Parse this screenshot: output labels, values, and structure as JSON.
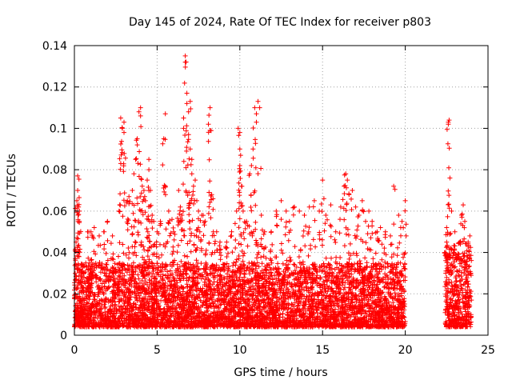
{
  "chart_data": {
    "type": "scatter",
    "title": "Day 145 of 2024, Rate Of TEC Index for receiver p803",
    "xlabel": "GPS time / hours",
    "ylabel": "ROTI / TECUs",
    "xlim": [
      0,
      25
    ],
    "ylim": [
      0,
      0.14
    ],
    "xticks": [
      0,
      5,
      10,
      15,
      20,
      25
    ],
    "yticks": [
      0,
      0.02,
      0.04,
      0.06,
      0.08,
      0.1,
      0.12,
      0.14
    ],
    "xtick_labels": [
      "0",
      "5",
      "10",
      "15",
      "20",
      "25"
    ],
    "ytick_labels": [
      "0",
      "0.02",
      "0.04",
      "0.06",
      "0.08",
      "0.1",
      "0.12",
      "0.14"
    ],
    "grid": true,
    "marker": "+",
    "color": "#ff0000",
    "data_gap_hours": [
      20.0,
      22.4
    ],
    "series": [
      {
        "name": "ROTI",
        "points": [
          [
            0.1,
            0.045
          ],
          [
            0.15,
            0.065
          ],
          [
            0.2,
            0.07
          ],
          [
            0.2,
            0.077
          ],
          [
            0.25,
            0.062
          ],
          [
            0.3,
            0.055
          ],
          [
            0.3,
            0.06
          ],
          [
            0.8,
            0.05
          ],
          [
            1.0,
            0.05
          ],
          [
            1.2,
            0.052
          ],
          [
            1.5,
            0.048
          ],
          [
            1.8,
            0.05
          ],
          [
            2.0,
            0.055
          ],
          [
            2.3,
            0.048
          ],
          [
            2.7,
            0.06
          ],
          [
            2.8,
            0.083
          ],
          [
            2.8,
            0.105
          ],
          [
            2.9,
            0.1
          ],
          [
            3.0,
            0.103
          ],
          [
            3.0,
            0.098
          ],
          [
            3.2,
            0.065
          ],
          [
            3.3,
            0.067
          ],
          [
            3.5,
            0.07
          ],
          [
            3.6,
            0.078
          ],
          [
            3.7,
            0.085
          ],
          [
            3.8,
            0.095
          ],
          [
            3.8,
            0.092
          ],
          [
            3.9,
            0.108
          ],
          [
            4.0,
            0.11
          ],
          [
            4.0,
            0.106
          ],
          [
            4.1,
            0.072
          ],
          [
            4.2,
            0.07
          ],
          [
            4.3,
            0.065
          ],
          [
            4.4,
            0.075
          ],
          [
            4.5,
            0.085
          ],
          [
            4.5,
            0.08
          ],
          [
            4.6,
            0.07
          ],
          [
            4.7,
            0.058
          ],
          [
            4.8,
            0.055
          ],
          [
            5.0,
            0.05
          ],
          [
            5.2,
            0.055
          ],
          [
            5.4,
            0.095
          ],
          [
            5.5,
            0.107
          ],
          [
            5.5,
            0.072
          ],
          [
            5.7,
            0.06
          ],
          [
            5.9,
            0.056
          ],
          [
            6.0,
            0.05
          ],
          [
            6.3,
            0.07
          ],
          [
            6.4,
            0.062
          ],
          [
            6.5,
            0.058
          ],
          [
            6.6,
            0.1
          ],
          [
            6.6,
            0.105
          ],
          [
            6.7,
            0.135
          ],
          [
            6.7,
            0.132
          ],
          [
            6.8,
            0.117
          ],
          [
            6.8,
            0.112
          ],
          [
            6.9,
            0.097
          ],
          [
            6.9,
            0.108
          ],
          [
            7.0,
            0.113
          ],
          [
            7.0,
            0.09
          ],
          [
            7.1,
            0.085
          ],
          [
            7.1,
            0.078
          ],
          [
            7.2,
            0.072
          ],
          [
            7.3,
            0.075
          ],
          [
            7.4,
            0.065
          ],
          [
            7.5,
            0.06
          ],
          [
            7.7,
            0.058
          ],
          [
            7.9,
            0.055
          ],
          [
            8.1,
            0.102
          ],
          [
            8.2,
            0.11
          ],
          [
            8.2,
            0.099
          ],
          [
            8.3,
            0.068
          ],
          [
            8.4,
            0.05
          ],
          [
            8.6,
            0.05
          ],
          [
            8.8,
            0.045
          ],
          [
            9.2,
            0.045
          ],
          [
            9.5,
            0.05
          ],
          [
            9.8,
            0.06
          ],
          [
            9.9,
            0.1
          ],
          [
            10.0,
            0.098
          ],
          [
            10.0,
            0.09
          ],
          [
            10.0,
            0.082
          ],
          [
            10.1,
            0.072
          ],
          [
            10.2,
            0.06
          ],
          [
            10.4,
            0.055
          ],
          [
            10.6,
            0.078
          ],
          [
            10.7,
            0.082
          ],
          [
            10.8,
            0.09
          ],
          [
            10.9,
            0.11
          ],
          [
            11.0,
            0.107
          ],
          [
            11.0,
            0.103
          ],
          [
            11.1,
            0.113
          ],
          [
            11.2,
            0.11
          ],
          [
            11.3,
            0.058
          ],
          [
            11.5,
            0.05
          ],
          [
            11.9,
            0.05
          ],
          [
            12.2,
            0.06
          ],
          [
            12.5,
            0.065
          ],
          [
            12.8,
            0.06
          ],
          [
            13.0,
            0.055
          ],
          [
            13.3,
            0.062
          ],
          [
            13.6,
            0.06
          ],
          [
            13.9,
            0.058
          ],
          [
            14.2,
            0.062
          ],
          [
            14.5,
            0.065
          ],
          [
            14.8,
            0.06
          ],
          [
            15.0,
            0.075
          ],
          [
            15.2,
            0.058
          ],
          [
            15.5,
            0.063
          ],
          [
            15.8,
            0.05
          ],
          [
            16.1,
            0.062
          ],
          [
            16.3,
            0.072
          ],
          [
            16.4,
            0.078
          ],
          [
            16.5,
            0.075
          ],
          [
            16.6,
            0.068
          ],
          [
            16.8,
            0.07
          ],
          [
            17.0,
            0.062
          ],
          [
            17.2,
            0.058
          ],
          [
            17.4,
            0.065
          ],
          [
            17.6,
            0.055
          ],
          [
            17.8,
            0.06
          ],
          [
            18.0,
            0.055
          ],
          [
            18.3,
            0.05
          ],
          [
            18.5,
            0.052
          ],
          [
            18.8,
            0.05
          ],
          [
            19.1,
            0.048
          ],
          [
            19.3,
            0.072
          ],
          [
            19.6,
            0.058
          ],
          [
            19.8,
            0.055
          ],
          [
            20.0,
            0.065
          ],
          [
            22.4,
            0.04
          ],
          [
            22.5,
            0.045
          ],
          [
            22.5,
            0.052
          ],
          [
            22.6,
            0.103
          ],
          [
            22.6,
            0.102
          ],
          [
            22.65,
            0.104
          ],
          [
            22.7,
            0.076
          ],
          [
            22.8,
            0.06
          ],
          [
            23.0,
            0.05
          ],
          [
            23.3,
            0.045
          ],
          [
            23.4,
            0.058
          ],
          [
            23.5,
            0.063
          ],
          [
            23.6,
            0.055
          ],
          [
            23.8,
            0.045
          ],
          [
            23.9,
            0.048
          ]
        ],
        "baseline_band": {
          "description": "dense cloud of points between these ROTI values across time segments",
          "segments": [
            {
              "from": 0,
              "to": 20,
              "low": 0.004,
              "high": 0.035
            },
            {
              "from": 22.4,
              "to": 24,
              "low": 0.004,
              "high": 0.04
            }
          ]
        }
      }
    ]
  }
}
